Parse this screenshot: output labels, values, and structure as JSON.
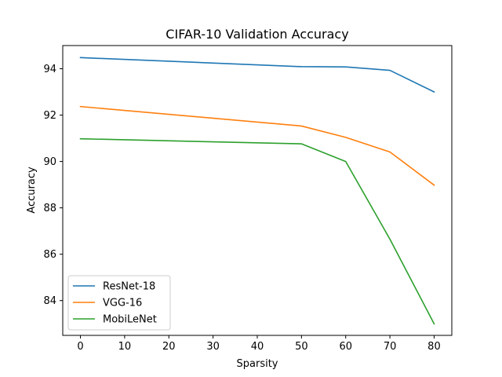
{
  "chart_data": {
    "type": "line",
    "title": "CIFAR-10 Validation Accuracy",
    "xlabel": "Sparsity",
    "ylabel": "Accuracy",
    "x": [
      0,
      50,
      60,
      70,
      80
    ],
    "xlim": [
      -4,
      84
    ],
    "ylim": [
      82.5,
      95.0
    ],
    "xticks": [
      0,
      10,
      20,
      30,
      40,
      50,
      60,
      70,
      80
    ],
    "yticks": [
      84,
      86,
      88,
      90,
      92,
      94
    ],
    "grid": false,
    "legend_position": "lower-left",
    "series": [
      {
        "name": "ResNet-18",
        "color": "#1f77b4",
        "values": [
          94.48,
          94.09,
          94.08,
          93.93,
          93.0
        ]
      },
      {
        "name": "VGG-16",
        "color": "#ff7f0e",
        "values": [
          92.37,
          91.53,
          91.04,
          90.41,
          88.98
        ]
      },
      {
        "name": "MobiLeNet",
        "color": "#2ca02c",
        "values": [
          90.98,
          90.76,
          90.0,
          86.65,
          83.0
        ]
      }
    ]
  }
}
